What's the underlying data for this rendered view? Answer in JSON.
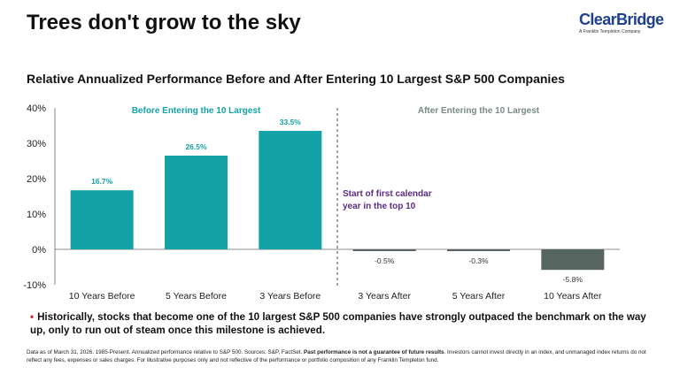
{
  "page": {
    "title": "Trees don't grow to the sky",
    "logo_name": "ClearBridge",
    "logo_tagline": "A Franklin Templeton Company",
    "bullet": "Historically, stocks that become one of the 10 largest S&P 500 companies have strongly outpaced the benchmark on the way up, only to run out of steam once this milestone is achieved.",
    "footnote_part1": "Data as of March 31, 2026. 1985-Present. Annualized performance relative to S&P 500. Sources: S&P, FactSet. ",
    "footnote_bold": "Past performance is not a guarantee of future results",
    "footnote_part2": ". Investors cannot invest directly in an index, and unmanaged index returns do not reflect any fees, expenses or sales charges. For illustrative purposes only and not reflective of the performance or portfolio composition of any Franklin Templeton fund."
  },
  "colors": {
    "before_bars": "#13a3a6",
    "after_bars": "#566560",
    "before_label": "#13a3a6",
    "after_label": "#7a8a86",
    "annotation": "#5b2a86",
    "brand": "#1f3f8f",
    "bullet": "#d0282e"
  },
  "chart_data": {
    "type": "bar",
    "title": "Relative Annualized Performance Before and After Entering 10 Largest S&P 500 Companies",
    "categories": [
      "10 Years Before",
      "5 Years Before",
      "3 Years Before",
      "3 Years After",
      "5 Years After",
      "10 Years After"
    ],
    "values": [
      16.7,
      26.5,
      33.5,
      -0.5,
      -0.3,
      -5.8
    ],
    "value_labels": [
      "16.7%",
      "26.5%",
      "33.5%",
      "-0.5%",
      "-0.3%",
      "-5.8%"
    ],
    "ylim": [
      -10,
      40
    ],
    "yticks": [
      40,
      30,
      20,
      10,
      0,
      -10
    ],
    "ytick_labels": [
      "40%",
      "30%",
      "20%",
      "10%",
      "0%",
      "-10%"
    ],
    "group_labels": [
      "Before Entering the 10 Largest",
      "After Entering the 10 Largest"
    ],
    "annotation_lines": [
      "Start of first calendar",
      "year in the top 10"
    ],
    "grid": false,
    "divider": "dashed vertical line between 3 Years Before and 3 Years After"
  }
}
